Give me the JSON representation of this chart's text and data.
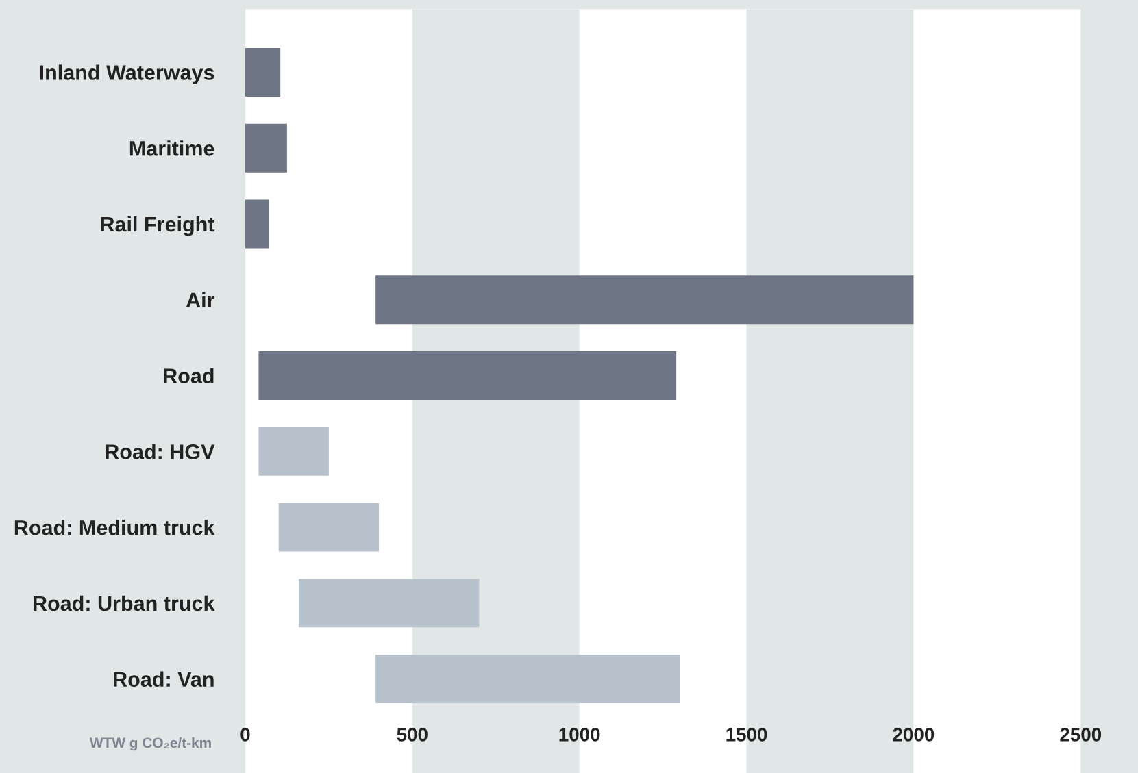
{
  "chart_data": {
    "type": "bar",
    "orientation": "horizontal",
    "xlabel": "WTW g CO₂e/t-km",
    "categories": [
      "Inland Waterways",
      "Maritime",
      "Rail Freight",
      "Air",
      "Road",
      "Road: HGV",
      "Road: Medium truck",
      "Road: Urban truck",
      "Road: Van"
    ],
    "base": [
      0,
      0,
      -5,
      390,
      40,
      40,
      100,
      160,
      390
    ],
    "values": [
      105,
      125,
      75,
      1610,
      1250,
      210,
      300,
      540,
      910
    ],
    "colors": [
      "#6e7685",
      "#6e7685",
      "#6e7685",
      "#6e7685",
      "#6e7685",
      "#b8c2cc",
      "#b8c2cc",
      "#b8c2cc",
      "#b8c2cc"
    ],
    "xlim": [
      0,
      2500
    ],
    "xticks": [
      0,
      500,
      1000,
      1500,
      2000,
      2500
    ],
    "bands": [
      {
        "axis": "x",
        "from": 500,
        "to": 1000,
        "color": "#e1e7e7"
      },
      {
        "axis": "x",
        "from": 1500,
        "to": 2000,
        "color": "#e1e7e7"
      }
    ],
    "grid": false
  }
}
